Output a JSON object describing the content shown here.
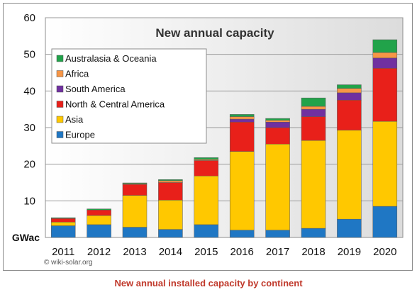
{
  "caption": "New annual installed capacity by continent",
  "credit": "© wiki-solar.org",
  "chart_data": {
    "type": "bar",
    "stacked": true,
    "title": "New annual capacity",
    "ylabel": "GWac",
    "ylim": [
      0,
      60
    ],
    "yticks": [
      10,
      20,
      30,
      40,
      50,
      60
    ],
    "grid": true,
    "legend_position": "top-left",
    "categories": [
      "2011",
      "2012",
      "2013",
      "2014",
      "2015",
      "2016",
      "2017",
      "2018",
      "2019",
      "2020"
    ],
    "series": [
      {
        "name": "Europe",
        "color": "#1f77c4",
        "values": [
          3.2,
          3.5,
          2.8,
          2.2,
          3.5,
          2.0,
          2.0,
          2.5,
          5.0,
          8.5
        ]
      },
      {
        "name": "Asia",
        "color": "#ffc800",
        "values": [
          1.0,
          2.5,
          8.7,
          8.0,
          13.3,
          21.5,
          23.5,
          24.0,
          24.3,
          23.2
        ]
      },
      {
        "name": "North & Central America",
        "color": "#e8201a",
        "values": [
          1.0,
          1.5,
          3.0,
          4.8,
          4.2,
          8.0,
          4.5,
          6.5,
          8.2,
          14.5
        ]
      },
      {
        "name": "South America",
        "color": "#7030a0",
        "values": [
          0,
          0,
          0,
          0,
          0,
          0.8,
          1.5,
          2.0,
          2.0,
          2.8
        ]
      },
      {
        "name": "Africa",
        "color": "#f79646",
        "values": [
          0,
          0,
          0.2,
          0.5,
          0.3,
          0.7,
          0.5,
          0.8,
          1.2,
          1.5
        ]
      },
      {
        "name": "Australasia & Oceania",
        "color": "#21a34a",
        "values": [
          0.2,
          0.3,
          0.2,
          0.3,
          0.5,
          0.6,
          0.5,
          2.3,
          1.0,
          3.5
        ]
      }
    ]
  }
}
